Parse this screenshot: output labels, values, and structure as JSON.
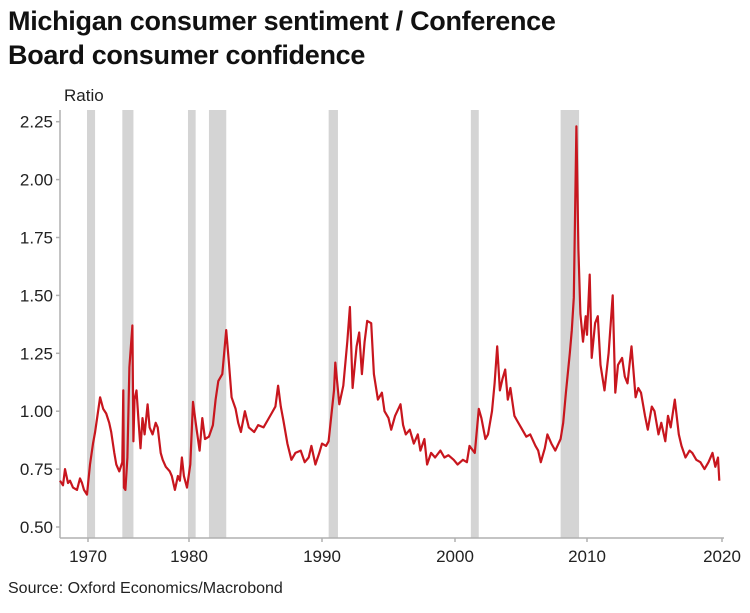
{
  "chart_data": {
    "type": "line",
    "title": "Michigan consumer sentiment / Conference Board consumer confidence",
    "title_lines": [
      "Michigan consumer sentiment / Conference",
      "Board consumer confidence"
    ],
    "ylabel": "Ratio",
    "xlabel": "",
    "ylim": [
      0.45,
      2.3
    ],
    "xlim": [
      1967.2,
      2020
    ],
    "yticks": [
      "0.50",
      "0.75",
      "1.00",
      "1.25",
      "1.50",
      "1.75",
      "2.00",
      "2.25"
    ],
    "xticks": [
      "1970",
      "1980",
      "1990",
      "2000",
      "2010",
      "2020"
    ],
    "grid": false,
    "source": "Source: Oxford Economics/Macrobond",
    "line_color": "#c8161e",
    "recession_color": "#d4d4d4",
    "recessions": [
      [
        1969.9,
        1970.7
      ],
      [
        1973.4,
        1974.5
      ],
      [
        1979.9,
        1980.5
      ],
      [
        1981.5,
        1982.8
      ],
      [
        1990.5,
        1991.2
      ],
      [
        2001.2,
        2001.8
      ],
      [
        2008.0,
        2009.4
      ]
    ],
    "series": [
      {
        "name": "Ratio",
        "points": [
          [
            1967.2,
            0.7
          ],
          [
            1967.5,
            0.68
          ],
          [
            1967.7,
            0.75
          ],
          [
            1968.0,
            0.69
          ],
          [
            1968.2,
            0.7
          ],
          [
            1968.5,
            0.67
          ],
          [
            1968.9,
            0.66
          ],
          [
            1969.2,
            0.71
          ],
          [
            1969.4,
            0.69
          ],
          [
            1969.6,
            0.66
          ],
          [
            1969.9,
            0.64
          ],
          [
            1970.2,
            0.77
          ],
          [
            1970.5,
            0.86
          ],
          [
            1970.7,
            0.91
          ],
          [
            1971.0,
            1.0
          ],
          [
            1971.2,
            1.06
          ],
          [
            1971.5,
            1.01
          ],
          [
            1971.8,
            0.99
          ],
          [
            1972.1,
            0.95
          ],
          [
            1972.3,
            0.91
          ],
          [
            1972.6,
            0.82
          ],
          [
            1972.8,
            0.77
          ],
          [
            1973.1,
            0.74
          ],
          [
            1973.4,
            0.78
          ],
          [
            1973.5,
            1.09
          ],
          [
            1973.55,
            0.67
          ],
          [
            1973.7,
            0.66
          ],
          [
            1973.9,
            0.8
          ],
          [
            1974.1,
            1.19
          ],
          [
            1974.4,
            1.37
          ],
          [
            1974.5,
            0.87
          ],
          [
            1974.6,
            1.05
          ],
          [
            1974.8,
            1.09
          ],
          [
            1975.0,
            0.96
          ],
          [
            1975.2,
            0.84
          ],
          [
            1975.4,
            0.97
          ],
          [
            1975.6,
            0.9
          ],
          [
            1975.9,
            1.03
          ],
          [
            1976.1,
            0.93
          ],
          [
            1976.4,
            0.9
          ],
          [
            1976.7,
            0.95
          ],
          [
            1976.9,
            0.93
          ],
          [
            1977.2,
            0.82
          ],
          [
            1977.4,
            0.79
          ],
          [
            1977.7,
            0.76
          ],
          [
            1978.1,
            0.74
          ],
          [
            1978.3,
            0.72
          ],
          [
            1978.6,
            0.66
          ],
          [
            1978.9,
            0.72
          ],
          [
            1979.1,
            0.7
          ],
          [
            1979.3,
            0.8
          ],
          [
            1979.5,
            0.72
          ],
          [
            1979.8,
            0.67
          ],
          [
            1980.1,
            0.77
          ],
          [
            1980.3,
            1.04
          ],
          [
            1980.5,
            0.95
          ],
          [
            1980.8,
            0.83
          ],
          [
            1981.0,
            0.97
          ],
          [
            1981.2,
            0.88
          ],
          [
            1981.5,
            0.89
          ],
          [
            1981.8,
            0.94
          ],
          [
            1982.0,
            1.05
          ],
          [
            1982.2,
            1.13
          ],
          [
            1982.5,
            1.16
          ],
          [
            1982.8,
            1.35
          ],
          [
            1983.0,
            1.21
          ],
          [
            1983.2,
            1.06
          ],
          [
            1983.5,
            1.01
          ],
          [
            1983.7,
            0.95
          ],
          [
            1983.9,
            0.91
          ],
          [
            1984.2,
            1.0
          ],
          [
            1984.5,
            0.93
          ],
          [
            1984.9,
            0.91
          ],
          [
            1985.2,
            0.94
          ],
          [
            1985.6,
            0.93
          ],
          [
            1985.9,
            0.96
          ],
          [
            1986.2,
            0.99
          ],
          [
            1986.5,
            1.02
          ],
          [
            1986.7,
            1.11
          ],
          [
            1986.9,
            1.02
          ],
          [
            1987.1,
            0.96
          ],
          [
            1987.4,
            0.86
          ],
          [
            1987.7,
            0.79
          ],
          [
            1988.0,
            0.82
          ],
          [
            1988.4,
            0.83
          ],
          [
            1988.7,
            0.78
          ],
          [
            1989.0,
            0.8
          ],
          [
            1989.2,
            0.85
          ],
          [
            1989.5,
            0.77
          ],
          [
            1989.8,
            0.82
          ],
          [
            1990.0,
            0.86
          ],
          [
            1990.3,
            0.85
          ],
          [
            1990.5,
            0.87
          ],
          [
            1990.9,
            1.09
          ],
          [
            1991.0,
            1.21
          ],
          [
            1991.3,
            1.03
          ],
          [
            1991.6,
            1.11
          ],
          [
            1991.9,
            1.3
          ],
          [
            1992.1,
            1.45
          ],
          [
            1992.3,
            1.1
          ],
          [
            1992.6,
            1.28
          ],
          [
            1992.8,
            1.34
          ],
          [
            1993.0,
            1.16
          ],
          [
            1993.2,
            1.3
          ],
          [
            1993.4,
            1.39
          ],
          [
            1993.7,
            1.38
          ],
          [
            1993.9,
            1.16
          ],
          [
            1994.2,
            1.05
          ],
          [
            1994.5,
            1.08
          ],
          [
            1994.7,
            1.0
          ],
          [
            1995.0,
            0.97
          ],
          [
            1995.2,
            0.92
          ],
          [
            1995.5,
            0.98
          ],
          [
            1995.9,
            1.03
          ],
          [
            1996.1,
            0.94
          ],
          [
            1996.3,
            0.9
          ],
          [
            1996.6,
            0.92
          ],
          [
            1996.9,
            0.86
          ],
          [
            1997.2,
            0.9
          ],
          [
            1997.4,
            0.83
          ],
          [
            1997.7,
            0.88
          ],
          [
            1997.9,
            0.77
          ],
          [
            1998.2,
            0.82
          ],
          [
            1998.5,
            0.8
          ],
          [
            1998.9,
            0.83
          ],
          [
            1999.2,
            0.8
          ],
          [
            1999.5,
            0.81
          ],
          [
            1999.9,
            0.79
          ],
          [
            2000.2,
            0.77
          ],
          [
            2000.6,
            0.79
          ],
          [
            2000.9,
            0.78
          ],
          [
            2001.1,
            0.85
          ],
          [
            2001.5,
            0.82
          ],
          [
            2001.8,
            1.01
          ],
          [
            2002.0,
            0.97
          ],
          [
            2002.3,
            0.88
          ],
          [
            2002.5,
            0.9
          ],
          [
            2002.8,
            1.0
          ],
          [
            2003.0,
            1.12
          ],
          [
            2003.2,
            1.28
          ],
          [
            2003.4,
            1.09
          ],
          [
            2003.6,
            1.14
          ],
          [
            2003.8,
            1.18
          ],
          [
            2004.0,
            1.05
          ],
          [
            2004.2,
            1.1
          ],
          [
            2004.5,
            0.98
          ],
          [
            2004.7,
            0.96
          ],
          [
            2005.0,
            0.93
          ],
          [
            2005.4,
            0.89
          ],
          [
            2005.7,
            0.9
          ],
          [
            2006.1,
            0.85
          ],
          [
            2006.3,
            0.83
          ],
          [
            2006.5,
            0.78
          ],
          [
            2006.8,
            0.84
          ],
          [
            2007.0,
            0.9
          ],
          [
            2007.3,
            0.86
          ],
          [
            2007.6,
            0.83
          ],
          [
            2008.0,
            0.88
          ],
          [
            2008.2,
            0.95
          ],
          [
            2008.4,
            1.08
          ],
          [
            2008.7,
            1.25
          ],
          [
            2008.85,
            1.35
          ],
          [
            2009.0,
            1.49
          ],
          [
            2009.2,
            2.23
          ],
          [
            2009.35,
            1.7
          ],
          [
            2009.5,
            1.42
          ],
          [
            2009.7,
            1.3
          ],
          [
            2009.9,
            1.41
          ],
          [
            2010.0,
            1.33
          ],
          [
            2010.2,
            1.59
          ],
          [
            2010.35,
            1.23
          ],
          [
            2010.6,
            1.38
          ],
          [
            2010.8,
            1.41
          ],
          [
            2011.0,
            1.2
          ],
          [
            2011.3,
            1.09
          ],
          [
            2011.6,
            1.25
          ],
          [
            2011.9,
            1.5
          ],
          [
            2012.1,
            1.08
          ],
          [
            2012.3,
            1.2
          ],
          [
            2012.6,
            1.23
          ],
          [
            2012.8,
            1.15
          ],
          [
            2013.0,
            1.12
          ],
          [
            2013.3,
            1.28
          ],
          [
            2013.6,
            1.06
          ],
          [
            2013.8,
            1.1
          ],
          [
            2014.0,
            1.08
          ],
          [
            2014.3,
            0.98
          ],
          [
            2014.5,
            0.92
          ],
          [
            2014.8,
            1.02
          ],
          [
            2015.0,
            1.0
          ],
          [
            2015.3,
            0.9
          ],
          [
            2015.5,
            0.95
          ],
          [
            2015.8,
            0.87
          ],
          [
            2016.0,
            0.98
          ],
          [
            2016.2,
            0.93
          ],
          [
            2016.5,
            1.05
          ],
          [
            2016.8,
            0.9
          ],
          [
            2017.0,
            0.85
          ],
          [
            2017.3,
            0.8
          ],
          [
            2017.6,
            0.83
          ],
          [
            2017.8,
            0.82
          ],
          [
            2018.1,
            0.79
          ],
          [
            2018.4,
            0.78
          ],
          [
            2018.7,
            0.75
          ],
          [
            2019.0,
            0.78
          ],
          [
            2019.3,
            0.82
          ],
          [
            2019.5,
            0.76
          ],
          [
            2019.7,
            0.8
          ],
          [
            2019.8,
            0.7
          ]
        ]
      }
    ]
  }
}
